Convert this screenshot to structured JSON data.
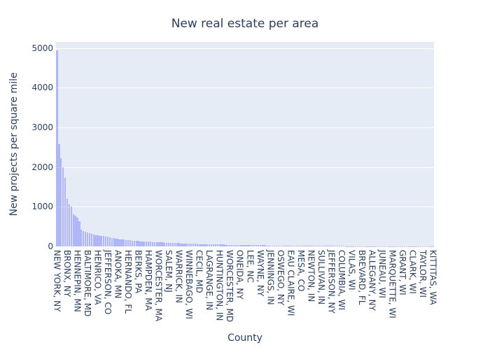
{
  "chart_data": {
    "type": "bar",
    "title": "New real estate per area",
    "xlabel": "County",
    "ylabel": "New projects per square mile",
    "ylim": [
      0,
      5150
    ],
    "yticks": [
      0,
      1000,
      2000,
      3000,
      4000,
      5000
    ],
    "grid": true,
    "legend": null,
    "bar_color": "#636efa",
    "plot_bg": "#e5ecf6",
    "n_categories": 186,
    "label_every": 5,
    "tick_labels": [
      "NEW YORK, NY",
      "BRONX, NY",
      "HENNEPIN, MN",
      "BALTIMORE, MD",
      "HENRICO, VA",
      "JEFFERSON, CO",
      "ANOKA, MN",
      "HERNANDO, FL",
      "BERKS, PA",
      "HAMPDEN, MA",
      "WORCESTER, MA",
      "SALEM, NJ",
      "WARRICK, IN",
      "WINNEBAGO, WI",
      "CECIL, MD",
      "LAGRANGE, IN",
      "HUNTINGTON, IN",
      "WORCESTER, MD",
      "ONEIDA, NY",
      "LEE, NC",
      "WAYNE, NY",
      "JENNINGS, IN",
      "OSWEGO, NY",
      "EAU CLAIRE, WI",
      "MESA, CO",
      "NEWTON, IN",
      "SULLIVAN, IN",
      "JEFFERSON, NY",
      "COLUMBIA, WI",
      "VILAS, WI",
      "BREVARD, FL",
      "ALLEGANY, NY",
      "JUNEAU, WI",
      "MARQUETTE, WI",
      "GRANT, WI",
      "CLARK, WI",
      "TAYLOR, WI",
      "KITTITAS, WA"
    ],
    "values_head": [
      4930,
      2570,
      2230,
      2000,
      1720,
      1200,
      1060,
      1000,
      820,
      780,
      720,
      640,
      420,
      390,
      370,
      350,
      330,
      310,
      300,
      290,
      280,
      270,
      265,
      260,
      255,
      240,
      225,
      215,
      205,
      200,
      190,
      180,
      175,
      170,
      165,
      160,
      155,
      150,
      145,
      140
    ],
    "values_tail_decay": {
      "start": 135,
      "end": 3,
      "count": 146
    }
  }
}
